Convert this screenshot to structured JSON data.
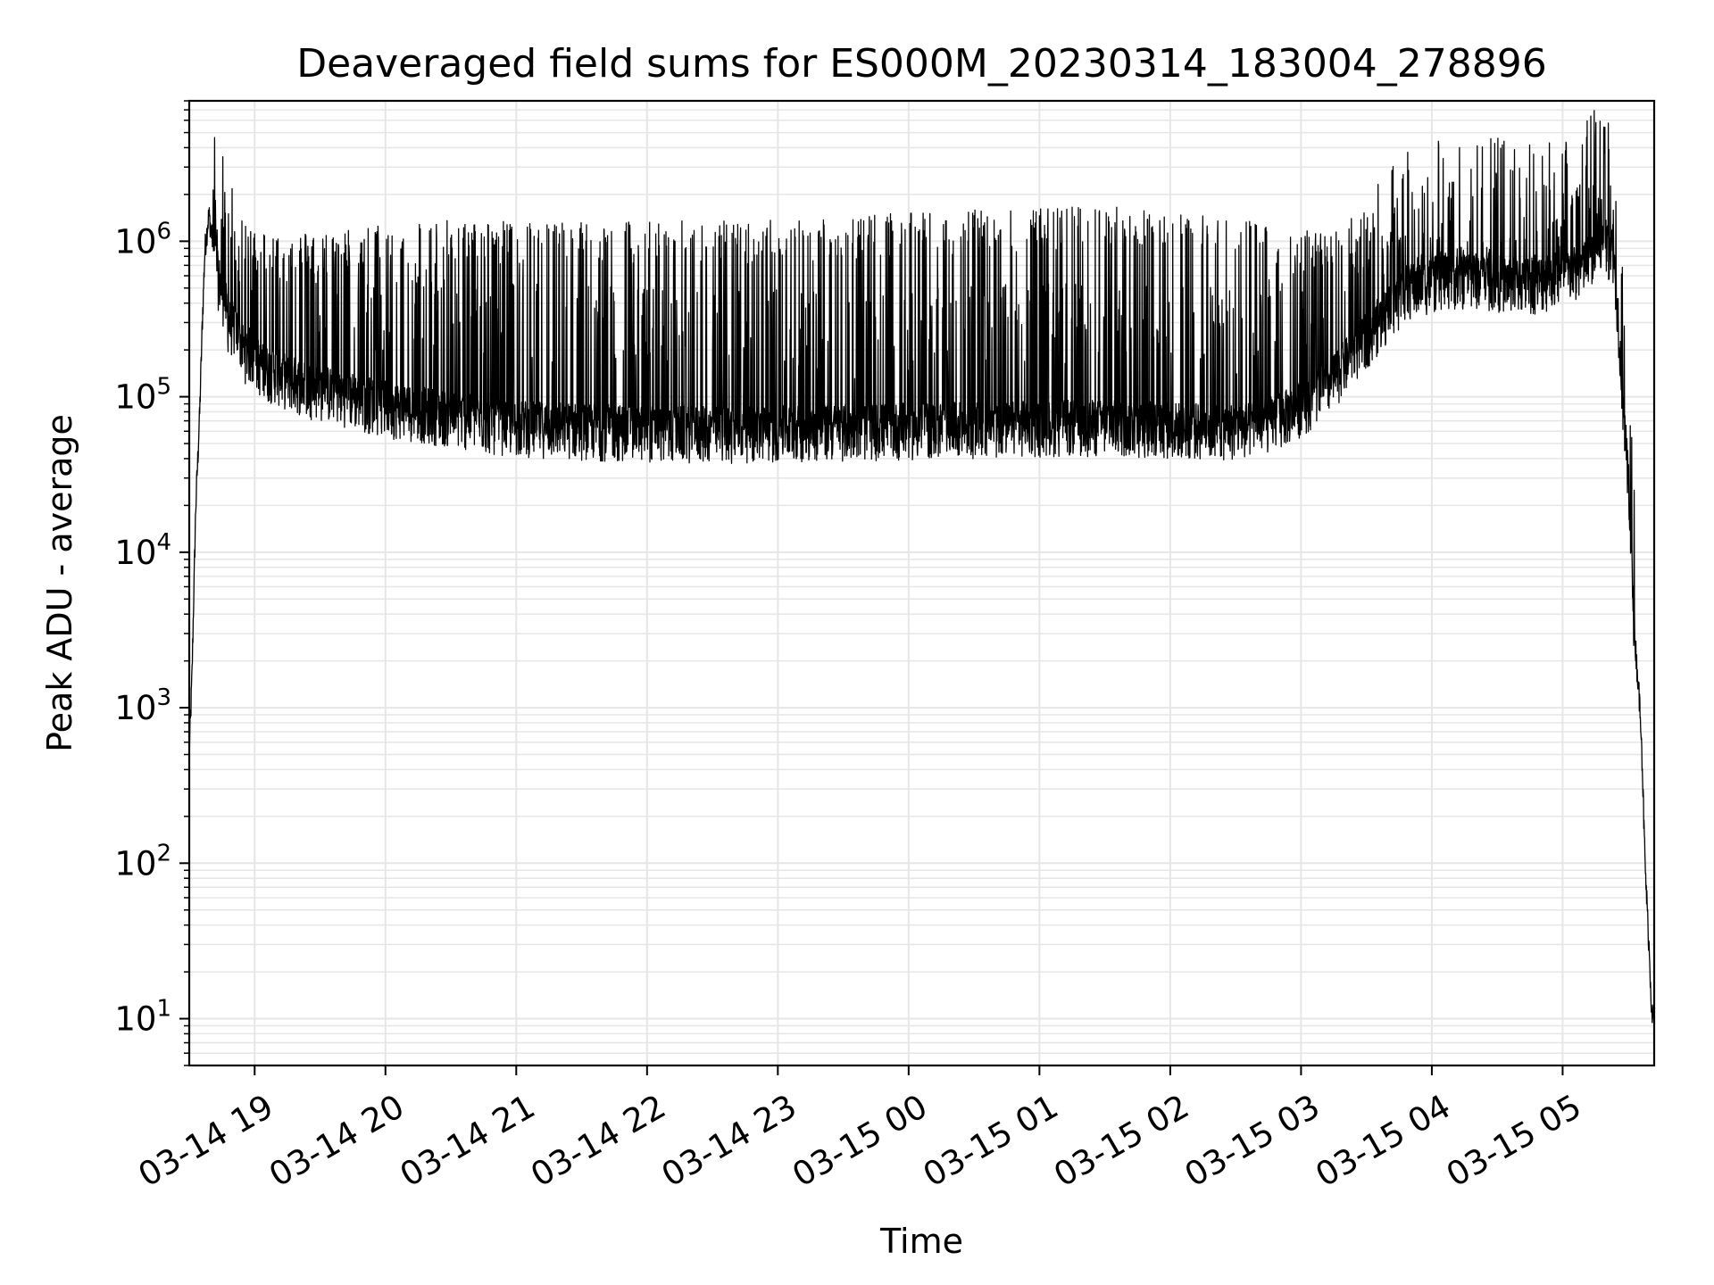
{
  "chart_data": {
    "type": "line",
    "title": "Deaveraged field sums for ES000M_20230314_183004_278896",
    "xlabel": "Time",
    "ylabel": "Peak ADU - average",
    "yscale": "log",
    "ylim": [
      5,
      8000000
    ],
    "xlim_hours": [
      18.5,
      29.7
    ],
    "grid": true,
    "line_color": "#000000",
    "grid_color": "#e6e6e6",
    "x_ticks": [
      {
        "hour": 19,
        "label": "03-14 19"
      },
      {
        "hour": 20,
        "label": "03-14 20"
      },
      {
        "hour": 21,
        "label": "03-14 21"
      },
      {
        "hour": 22,
        "label": "03-14 22"
      },
      {
        "hour": 23,
        "label": "03-14 23"
      },
      {
        "hour": 24,
        "label": "03-15 00"
      },
      {
        "hour": 25,
        "label": "03-15 01"
      },
      {
        "hour": 26,
        "label": "03-15 02"
      },
      {
        "hour": 27,
        "label": "03-15 03"
      },
      {
        "hour": 28,
        "label": "03-15 04"
      },
      {
        "hour": 29,
        "label": "03-15 05"
      }
    ],
    "y_ticks": [
      {
        "value": 10,
        "base": "10",
        "exp": "1"
      },
      {
        "value": 100,
        "base": "10",
        "exp": "2"
      },
      {
        "value": 1000,
        "base": "10",
        "exp": "3"
      },
      {
        "value": 10000,
        "base": "10",
        "exp": "4"
      },
      {
        "value": 100000,
        "base": "10",
        "exp": "5"
      },
      {
        "value": 1000000,
        "base": "10",
        "exp": "6"
      }
    ],
    "series": [
      {
        "x_hours": [
          18.5,
          18.52,
          18.55,
          18.58,
          18.6,
          18.62,
          18.65,
          18.68,
          18.7,
          18.72,
          18.75,
          18.78,
          18.8,
          18.82,
          18.85,
          18.88,
          18.9,
          18.93,
          18.96,
          19.0,
          19.05,
          19.1,
          19.15,
          19.2,
          19.3,
          19.4,
          19.5,
          19.6,
          19.7,
          19.8,
          19.9,
          20.0,
          20.2,
          20.4,
          20.6,
          20.8,
          21.0,
          21.3,
          21.6,
          22.0,
          22.4,
          22.8,
          23.2,
          23.6,
          24.0,
          24.4,
          24.8,
          25.2,
          25.6,
          26.0,
          26.3,
          26.6,
          26.9,
          27.2,
          27.5,
          27.8,
          28.1,
          28.4,
          28.7,
          29.0,
          29.15,
          29.25,
          29.32,
          29.38,
          29.42,
          29.46,
          29.5,
          29.55,
          29.6,
          29.63,
          29.66,
          29.68,
          29.7
        ],
        "baseline": [
          500,
          1500,
          20000,
          80000,
          300000,
          900000,
          1500000,
          1000000,
          800000,
          600000,
          500000,
          400000,
          300000,
          300000,
          280000,
          250000,
          220000,
          200000,
          200000,
          180000,
          160000,
          150000,
          150000,
          140000,
          130000,
          120000,
          115000,
          110000,
          105000,
          100000,
          95000,
          90000,
          85000,
          80000,
          75000,
          70000,
          68000,
          66000,
          64000,
          63000,
          62000,
          62000,
          63000,
          64000,
          65000,
          66000,
          67000,
          68000,
          68000,
          66000,
          64000,
          65000,
          80000,
          120000,
          250000,
          500000,
          600000,
          600000,
          550000,
          600000,
          700000,
          900000,
          1000000,
          900000,
          400000,
          100000,
          30000,
          3000,
          800,
          100,
          30,
          12,
          9
        ],
        "peak": [
          700,
          2000,
          30000,
          100000,
          600000,
          2500000,
          3500000,
          2600000,
          1800000,
          1600000,
          1700000,
          1500000,
          1500000,
          1400000,
          1300000,
          1300000,
          1300000,
          1200000,
          1200000,
          1150000,
          1100000,
          1100000,
          1100000,
          1100000,
          1100000,
          1100000,
          1100000,
          1100000,
          1150000,
          1200000,
          1200000,
          1250000,
          1300000,
          1300000,
          1300000,
          1300000,
          1300000,
          1300000,
          1300000,
          1300000,
          1300000,
          1300000,
          1350000,
          1400000,
          1450000,
          1500000,
          1550000,
          1600000,
          1600000,
          1500000,
          1400000,
          1300000,
          1200000,
          1100000,
          1100000,
          1100000,
          1000000,
          1000000,
          1000000,
          1500000,
          2500000,
          2200000,
          1800000,
          1500000,
          600000,
          200000,
          50000,
          5000,
          1200,
          200,
          50,
          15,
          10
        ]
      }
    ]
  }
}
